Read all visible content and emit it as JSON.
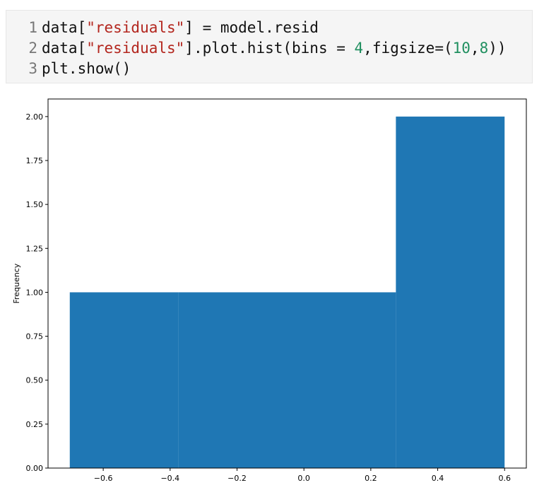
{
  "code": {
    "lines": [
      {
        "number": "1",
        "parts": [
          {
            "text": "data[",
            "type": "plain"
          },
          {
            "text": "\"residuals\"",
            "type": "string"
          },
          {
            "text": "] = model.resid",
            "type": "plain"
          }
        ]
      },
      {
        "number": "2",
        "parts": [
          {
            "text": "data[",
            "type": "plain"
          },
          {
            "text": "\"residuals\"",
            "type": "string"
          },
          {
            "text": "].plot.hist(bins = ",
            "type": "plain"
          },
          {
            "text": "4",
            "type": "number"
          },
          {
            "text": ",figsize=(",
            "type": "plain"
          },
          {
            "text": "10",
            "type": "number"
          },
          {
            "text": ",",
            "type": "plain"
          },
          {
            "text": "8",
            "type": "number"
          },
          {
            "text": "))",
            "type": "plain"
          }
        ]
      },
      {
        "number": "3",
        "parts": [
          {
            "text": "plt.show()",
            "type": "plain"
          }
        ]
      }
    ]
  },
  "chart_data": {
    "type": "bar",
    "subtype": "histogram",
    "bin_edges": [
      -0.7,
      -0.375,
      -0.05,
      0.275,
      0.6
    ],
    "values": [
      1,
      1,
      1,
      2
    ],
    "xlim": [
      -0.765,
      0.665
    ],
    "ylim": [
      0,
      2.1
    ],
    "xticks": [
      -0.6,
      -0.4,
      -0.2,
      0.0,
      0.2,
      0.4,
      0.6
    ],
    "xtick_labels": [
      "−0.6",
      "−0.4",
      "−0.2",
      "0.0",
      "0.2",
      "0.4",
      "0.6"
    ],
    "yticks": [
      0,
      0.25,
      0.5,
      0.75,
      1.0,
      1.25,
      1.5,
      1.75,
      2.0
    ],
    "ytick_labels": [
      "0.00",
      "0.25",
      "0.50",
      "0.75",
      "1.00",
      "1.25",
      "1.50",
      "1.75",
      "2.00"
    ],
    "title": "",
    "xlabel": "",
    "ylabel": "Frequency",
    "grid": false,
    "color": "#1f77b4"
  }
}
